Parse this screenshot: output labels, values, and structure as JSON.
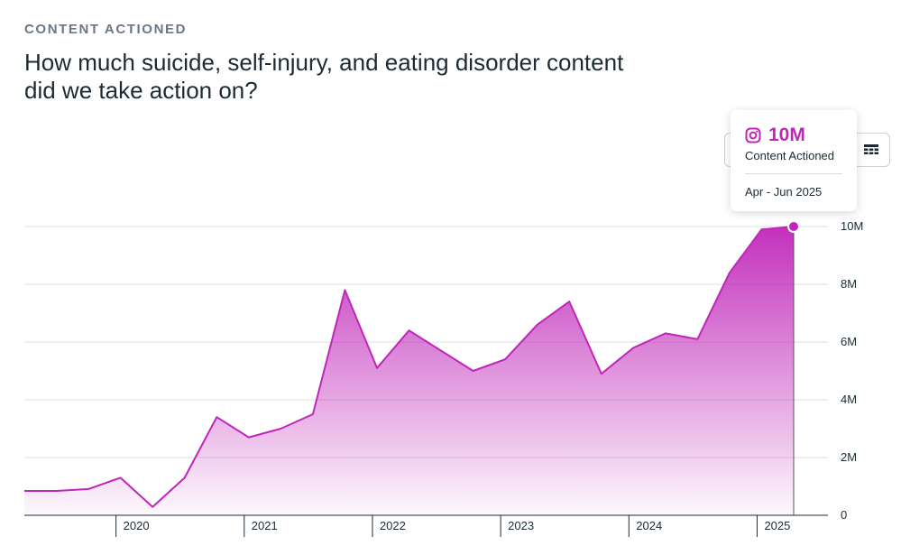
{
  "header": {
    "eyebrow": "CONTENT ACTIONED",
    "title": "How much suicide, self-injury, and eating disorder content did we take action on?"
  },
  "tooltip": {
    "icon": "instagram-icon",
    "value": "10M",
    "metric": "Content Actioned",
    "period": "Apr - Jun 2025"
  },
  "view_toggle": {
    "table_icon": "table-icon"
  },
  "colors": {
    "series": "#c026b9",
    "grid": "#dadde1",
    "axis_text": "#1c2b33"
  },
  "chart_data": {
    "type": "area",
    "title": "",
    "xlabel": "",
    "ylabel": "",
    "x_tick_labels": [
      "2020",
      "2021",
      "2022",
      "2023",
      "2024",
      "2025"
    ],
    "y_tick_labels": [
      "0",
      "2M",
      "4M",
      "6M",
      "8M",
      "10M"
    ],
    "ylim": [
      0,
      10000000
    ],
    "y_ticks": [
      0,
      2000000,
      4000000,
      6000000,
      8000000,
      10000000
    ],
    "grid": true,
    "y_axis_position": "right",
    "x": [
      "Q2 2019",
      "Q3 2019",
      "Q4 2019",
      "Q1 2020",
      "Q2 2020",
      "Q3 2020",
      "Q4 2020",
      "Q1 2021",
      "Q2 2021",
      "Q3 2021",
      "Q4 2021",
      "Q1 2022",
      "Q2 2022",
      "Q3 2022",
      "Q4 2022",
      "Q1 2023",
      "Q2 2023",
      "Q3 2023",
      "Q4 2023",
      "Q1 2024",
      "Q2 2024",
      "Q3 2024",
      "Q4 2024",
      "Q1 2025",
      "Q2 2025"
    ],
    "series": [
      {
        "values": [
          845000,
          845000,
          910000,
          1300000,
          290000,
          1300000,
          3400000,
          2700000,
          3000000,
          3500000,
          7800000,
          5100000,
          6400000,
          5700000,
          5000000,
          5400000,
          6600000,
          7400000,
          4900000,
          5800000,
          6300000,
          6100000,
          8400000,
          9900000,
          10000000
        ]
      }
    ],
    "highlight_index": 24
  }
}
